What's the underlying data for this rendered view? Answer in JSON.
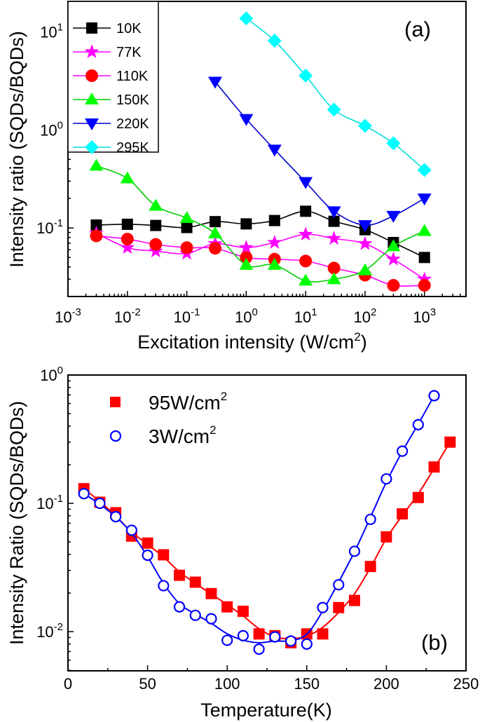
{
  "chart_data": [
    {
      "type": "line",
      "panel_label": "(a)",
      "xlabel": "Excitation intensity (W/cm",
      "xlabel_sup": "2",
      "xlabel_end": ")",
      "ylabel": "Intensity ratio (SQDs/BQDs)",
      "xscale": "log",
      "yscale": "log",
      "xlim": [
        0.001,
        5000
      ],
      "ylim": [
        0.02,
        20.4
      ],
      "xticks": [
        -3,
        -2,
        -1,
        0,
        1,
        2,
        3
      ],
      "yticks": [
        -1,
        0,
        1
      ],
      "grid": false,
      "legend_position": "top-left",
      "x": [
        0.003,
        0.01,
        0.03,
        0.1,
        0.3,
        1,
        3,
        10,
        30,
        100,
        300,
        1000
      ],
      "series": [
        {
          "name": "10K",
          "marker": "square",
          "line_color": "#000000",
          "marker_color": "#000000",
          "x": [
            0.003,
            0.01,
            0.03,
            0.1,
            0.3,
            1,
            3,
            10,
            30,
            100,
            300,
            1000
          ],
          "values": [
            0.107,
            0.109,
            0.106,
            0.101,
            0.116,
            0.11,
            0.119,
            0.148,
            0.117,
            0.096,
            0.071,
            0.05
          ]
        },
        {
          "name": "77K",
          "marker": "star",
          "line_color": "#ff00ff",
          "marker_color": "#ff00ff",
          "x": [
            0.003,
            0.01,
            0.03,
            0.1,
            0.3,
            1,
            3,
            10,
            30,
            100,
            300,
            1000
          ],
          "values": [
            0.088,
            0.063,
            0.058,
            0.055,
            0.069,
            0.063,
            0.071,
            0.086,
            0.078,
            0.069,
            0.048,
            0.03
          ]
        },
        {
          "name": "110K",
          "marker": "circle",
          "line_color": "#ff00ff",
          "marker_color": "#ff0000",
          "x": [
            0.003,
            0.01,
            0.03,
            0.1,
            0.3,
            1,
            3,
            10,
            30,
            100,
            300,
            1000
          ],
          "values": [
            0.083,
            0.077,
            0.068,
            0.063,
            0.062,
            0.05,
            0.048,
            0.046,
            0.039,
            0.033,
            0.026,
            0.026
          ]
        },
        {
          "name": "150K",
          "marker": "triangle-up",
          "line_color": "#00cc00",
          "marker_color": "#00ff00",
          "x": [
            0.003,
            0.01,
            0.03,
            0.1,
            0.3,
            1,
            3,
            10,
            30,
            100,
            300,
            1000
          ],
          "values": [
            0.43,
            0.32,
            0.168,
            0.126,
            0.088,
            0.042,
            0.042,
            0.029,
            0.03,
            0.037,
            0.065,
            0.093
          ]
        },
        {
          "name": "220K",
          "marker": "triangle-down",
          "line_color": "#0000cc",
          "marker_color": "#0000ff",
          "x": [
            0.3,
            1,
            3,
            10,
            30,
            100,
            300,
            1000
          ],
          "values": [
            3.1,
            1.29,
            0.63,
            0.294,
            0.148,
            0.107,
            0.133,
            0.2
          ]
        },
        {
          "name": "295K",
          "marker": "diamond",
          "line_color": "#00dddd",
          "marker_color": "#00ffff",
          "x": [
            1,
            3,
            10,
            30,
            100,
            300,
            1000
          ],
          "values": [
            13.7,
            8.1,
            3.57,
            1.61,
            1.1,
            0.73,
            0.39
          ]
        }
      ]
    },
    {
      "type": "scatter",
      "panel_label": "(b)",
      "xlabel": "Temperature(K)",
      "ylabel": "Intensity Ratio (SQDs/BQDs)",
      "xscale": "linear",
      "yscale": "log",
      "xlim": [
        0,
        250
      ],
      "ylim": [
        0.00495,
        1.0
      ],
      "xticks": [
        0,
        50,
        100,
        150,
        200,
        250
      ],
      "yticks": [
        -2,
        -1,
        0
      ],
      "grid": false,
      "legend_position": "top-left",
      "fit_lines": true,
      "series": [
        {
          "name": "95W/cm",
          "name_sup": "2",
          "marker": "filled-square",
          "color": "#ff0000",
          "x": [
            10,
            20,
            30,
            40,
            50,
            60,
            70,
            80,
            90,
            100,
            110,
            120,
            130,
            140,
            150,
            160,
            170,
            180,
            190,
            200,
            210,
            220,
            230,
            240
          ],
          "values": [
            0.13,
            0.102,
            0.0845,
            0.0555,
            0.049,
            0.0397,
            0.0275,
            0.0243,
            0.0198,
            0.0156,
            0.0144,
            0.0096,
            0.0093,
            0.0082,
            0.0096,
            0.0096,
            0.0154,
            0.0175,
            0.0322,
            0.0548,
            0.0828,
            0.111,
            0.192,
            0.3
          ]
        },
        {
          "name": "3W/cm",
          "name_sup": "2",
          "marker": "open-circle",
          "color": "#0000ff",
          "x": [
            10,
            20,
            30,
            40,
            50,
            60,
            70,
            80,
            90,
            100,
            110,
            120,
            130,
            140,
            150,
            160,
            170,
            180,
            190,
            200,
            210,
            220,
            230
          ],
          "values": [
            0.119,
            0.1,
            0.0787,
            0.0617,
            0.0394,
            0.0228,
            0.0156,
            0.0134,
            0.0126,
            0.00856,
            0.0093,
            0.0073,
            0.0091,
            0.00845,
            0.008,
            0.0154,
            0.0232,
            0.0423,
            0.075,
            0.155,
            0.255,
            0.41,
            0.69
          ]
        }
      ]
    }
  ]
}
